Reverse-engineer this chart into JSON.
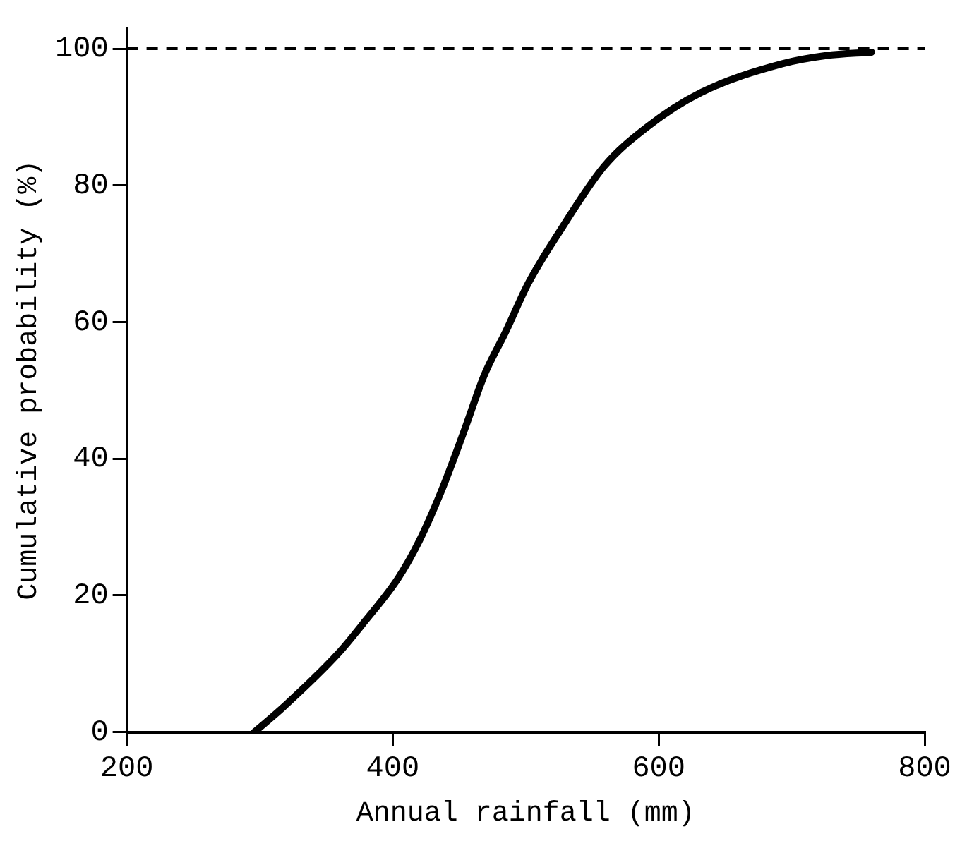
{
  "chart_data": {
    "type": "line",
    "xlabel": "Annual rainfall (mm)",
    "ylabel": "Cumulative probability (%)",
    "x": [
      296,
      318,
      359,
      379,
      404,
      420,
      436,
      453,
      469,
      485,
      502,
      526,
      559,
      591,
      632,
      693,
      726,
      760
    ],
    "series": [
      {
        "color": "#000000",
        "values": [
          0,
          3.7,
          11.5,
          16.2,
          22.5,
          28,
          35,
          43.7,
          52.3,
          58.6,
          65.7,
          73.4,
          82.8,
          88.5,
          93.6,
          97.8,
          99,
          99.5
        ]
      }
    ],
    "xlim": [
      200,
      800
    ],
    "xticks": [
      200,
      400,
      600,
      800
    ],
    "ylim": [
      0,
      103
    ],
    "yticks": [
      0,
      20,
      40,
      60,
      80,
      100
    ],
    "ref_lines": [
      {
        "axis": "y",
        "value": 100,
        "color": "#000000",
        "line_style": "dashed"
      }
    ],
    "grid": false,
    "legend": false,
    "marker": "none",
    "line_style": "solid"
  }
}
